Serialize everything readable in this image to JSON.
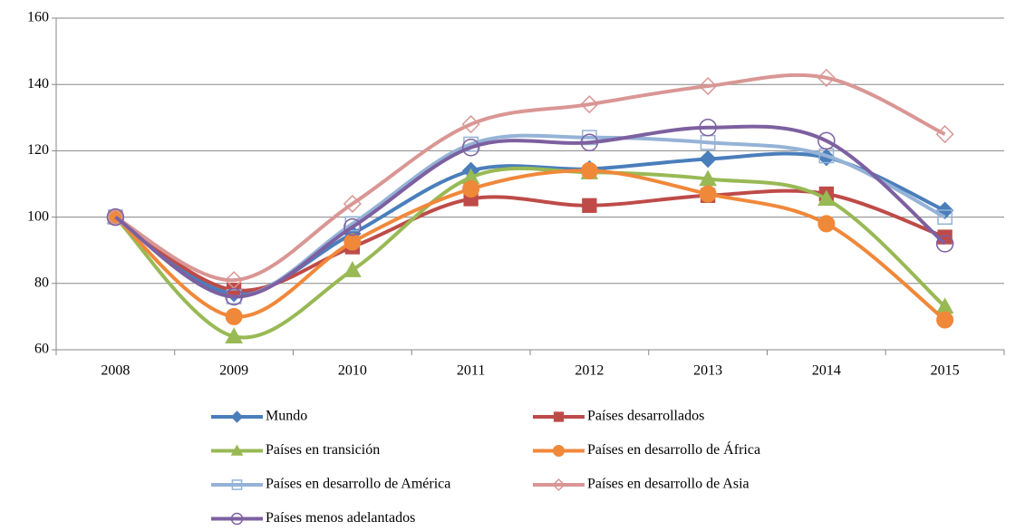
{
  "chart_data": {
    "type": "line",
    "categories": [
      "2008",
      "2009",
      "2010",
      "2011",
      "2012",
      "2013",
      "2014",
      "2015"
    ],
    "ylim": [
      60,
      160
    ],
    "yticks": [
      60,
      80,
      100,
      120,
      140,
      160
    ],
    "grid": true,
    "smooth": true,
    "series": [
      {
        "name": "Mundo",
        "color": "#4a7ebb",
        "marker": "diamond",
        "values": [
          100,
          77,
          95,
          114,
          114.5,
          117.5,
          118,
          102
        ]
      },
      {
        "name": "Países desarrollados",
        "color": "#be4b48",
        "marker": "square",
        "values": [
          100,
          78,
          91,
          105.5,
          103.5,
          106.5,
          107,
          94
        ]
      },
      {
        "name": "Países en transición",
        "color": "#98b954",
        "marker": "triangle",
        "values": [
          100,
          64,
          84,
          112,
          113.5,
          111.5,
          105.5,
          73
        ]
      },
      {
        "name": "Países en desarrollo de África",
        "color": "#f0883a",
        "marker": "circle",
        "values": [
          100,
          70,
          92.5,
          108.5,
          114,
          107,
          98,
          69
        ]
      },
      {
        "name": "Países en desarrollo de América",
        "color": "#95b3d7",
        "marker": "square-open",
        "values": [
          100,
          76,
          98,
          122,
          124,
          122.5,
          118.5,
          100
        ]
      },
      {
        "name": "Países en desarrollo de Asia",
        "color": "#d99694",
        "marker": "diamond-open",
        "values": [
          100,
          81,
          104,
          128,
          134,
          139.5,
          142,
          125
        ]
      },
      {
        "name": "Países menos adelantados",
        "color": "#7d60a0",
        "marker": "circle-open",
        "values": [
          100,
          76,
          97,
          121,
          122.5,
          127,
          123,
          92
        ]
      }
    ]
  }
}
